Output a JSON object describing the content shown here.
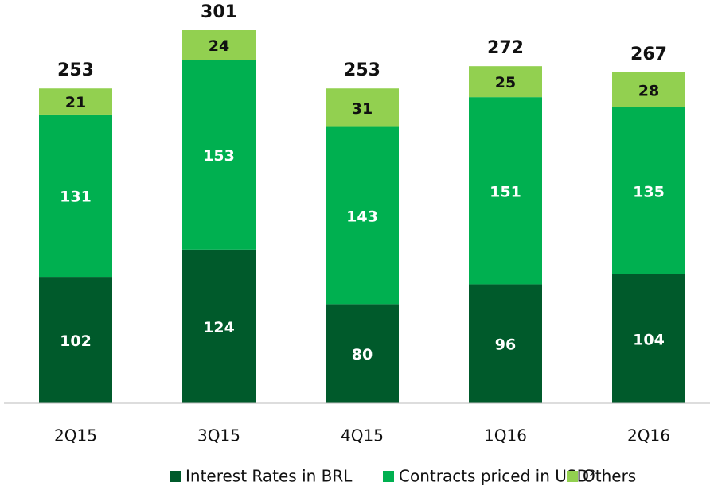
{
  "chart_data": {
    "type": "stacked_bar",
    "categories": [
      "2Q15",
      "3Q15",
      "4Q15",
      "1Q16",
      "2Q16"
    ],
    "series": [
      {
        "name": "Interest Rates in BRL",
        "color": "#005a2b",
        "values": [
          102,
          124,
          80,
          96,
          104
        ]
      },
      {
        "name": "Contracts priced in USD²",
        "color": "#00b050",
        "values": [
          131,
          153,
          143,
          151,
          135
        ]
      },
      {
        "name": "Others",
        "color": "#92d050",
        "values": [
          21,
          24,
          31,
          25,
          28
        ]
      }
    ],
    "totals": [
      253,
      301,
      253,
      272,
      267
    ]
  }
}
